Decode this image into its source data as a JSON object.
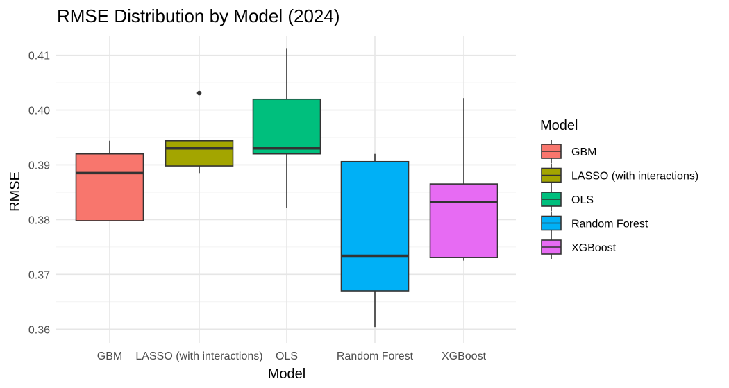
{
  "chart_data": {
    "type": "boxplot",
    "title": "RMSE Distribution by Model (2024)",
    "xlabel": "Model",
    "ylabel": "RMSE",
    "ylim": [
      0.3575,
      0.4135
    ],
    "yticks": [
      "0.36",
      "0.37",
      "0.38",
      "0.39",
      "0.40",
      "0.41"
    ],
    "ytick_values": [
      0.36,
      0.37,
      0.38,
      0.39,
      0.4,
      0.41
    ],
    "grid": true,
    "legend": {
      "title": "Model",
      "placement": "right"
    },
    "categories": [
      "GBM",
      "LASSO (with interactions)",
      "OLS",
      "Random Forest",
      "XGBoost"
    ],
    "series": [
      {
        "name": "GBM",
        "color": "#F8766D",
        "min": 0.3798,
        "q1": 0.3798,
        "median": 0.3885,
        "q3": 0.392,
        "max": 0.3944,
        "outliers": []
      },
      {
        "name": "LASSO (with interactions)",
        "color": "#A3A500",
        "min": 0.3885,
        "q1": 0.3898,
        "median": 0.393,
        "q3": 0.3944,
        "max": 0.3944,
        "outliers": [
          0.4031
        ]
      },
      {
        "name": "OLS",
        "color": "#00BF7D",
        "min": 0.3822,
        "q1": 0.392,
        "median": 0.393,
        "q3": 0.402,
        "max": 0.4113,
        "outliers": []
      },
      {
        "name": "Random Forest",
        "color": "#00B0F6",
        "min": 0.3604,
        "q1": 0.367,
        "median": 0.3734,
        "q3": 0.3906,
        "max": 0.392,
        "outliers": []
      },
      {
        "name": "XGBoost",
        "color": "#E76BF3",
        "min": 0.3725,
        "q1": 0.3731,
        "median": 0.3832,
        "q3": 0.3865,
        "max": 0.4022,
        "outliers": []
      }
    ]
  }
}
